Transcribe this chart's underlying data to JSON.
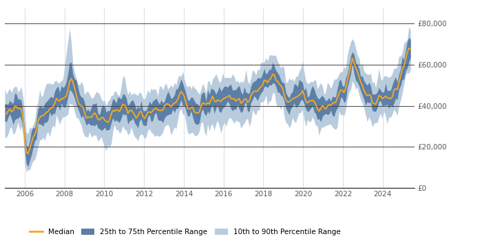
{
  "ylabel_right_ticks": [
    0,
    20000,
    40000,
    60000,
    80000
  ],
  "ylabel_right_labels": [
    "£0",
    "£20,000",
    "£40,000",
    "£60,000",
    "£80,000"
  ],
  "xmin": 2005.0,
  "xmax": 2025.6,
  "ymin": 0,
  "ymax": 88000,
  "median_color": "#f5a623",
  "band_25_75_color": "#5b7fa6",
  "band_10_90_color": "#b8ccde",
  "background_color": "#ffffff",
  "grid_color": "#d0d8e4",
  "legend_median_label": "Median",
  "legend_25_75_label": "25th to 75th Percentile Range",
  "legend_10_90_label": "10th to 90th Percentile Range",
  "x_tick_years": [
    2006,
    2008,
    2010,
    2012,
    2014,
    2016,
    2018,
    2020,
    2022,
    2024
  ],
  "median_color_line": "#f5a623",
  "line_width": 1.4
}
